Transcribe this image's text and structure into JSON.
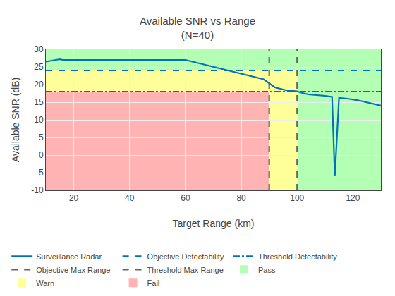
{
  "chart_data": {
    "type": "line",
    "title": "Available SNR vs Range\n(N=40)",
    "xlabel": "Target Range (km)",
    "ylabel": "Available SNR (dB)",
    "xlim": [
      10,
      130
    ],
    "xticks": [
      20,
      40,
      60,
      80,
      100,
      120
    ],
    "ylim": [
      -10,
      30
    ],
    "yticks": [
      -10,
      -5,
      0,
      5,
      10,
      15,
      20,
      25,
      30
    ],
    "grid": true,
    "legend": "bottom",
    "series": [
      {
        "name": "Surveillance Radar",
        "type": "line",
        "color": "#0072bd",
        "line_style": "solid",
        "x": [
          10,
          15,
          16,
          60,
          88,
          92,
          96,
          100,
          101,
          104,
          110,
          112.5,
          113.5,
          115,
          118,
          122,
          130
        ],
        "values": [
          26.5,
          27.2,
          27.0,
          27.0,
          21.5,
          19.2,
          18.4,
          18.1,
          17.8,
          17.2,
          16.8,
          16.5,
          -6.0,
          16.2,
          16.0,
          15.5,
          14.0
        ]
      },
      {
        "name": "Objective Detectability",
        "type": "hline",
        "color": "#0072bd",
        "line_style": "dashed",
        "value": 24.0
      },
      {
        "name": "Threshold Detectability",
        "type": "hline",
        "color": "#0072bd",
        "line_style": "dashdot",
        "value": 18.0
      },
      {
        "name": "Objective Max Range",
        "type": "vline",
        "color": "#666666",
        "line_style": "dashed",
        "value": 90
      },
      {
        "name": "Threshold Max Range",
        "type": "vline",
        "color": "#666666",
        "line_style": "dashed",
        "value": 100
      },
      {
        "name": "Pass",
        "type": "zone",
        "color": "#b3ffb3",
        "x": [
          10,
          130
        ],
        "y": [
          -10,
          30
        ]
      },
      {
        "name": "Warn",
        "type": "zone",
        "color": "#ffff99",
        "x": [
          10,
          100
        ],
        "y": [
          -10,
          24.0
        ]
      },
      {
        "name": "Fail",
        "type": "zone",
        "color": "#ffb3b3",
        "x": [
          10,
          90
        ],
        "y": [
          -10,
          18.0
        ]
      }
    ]
  }
}
